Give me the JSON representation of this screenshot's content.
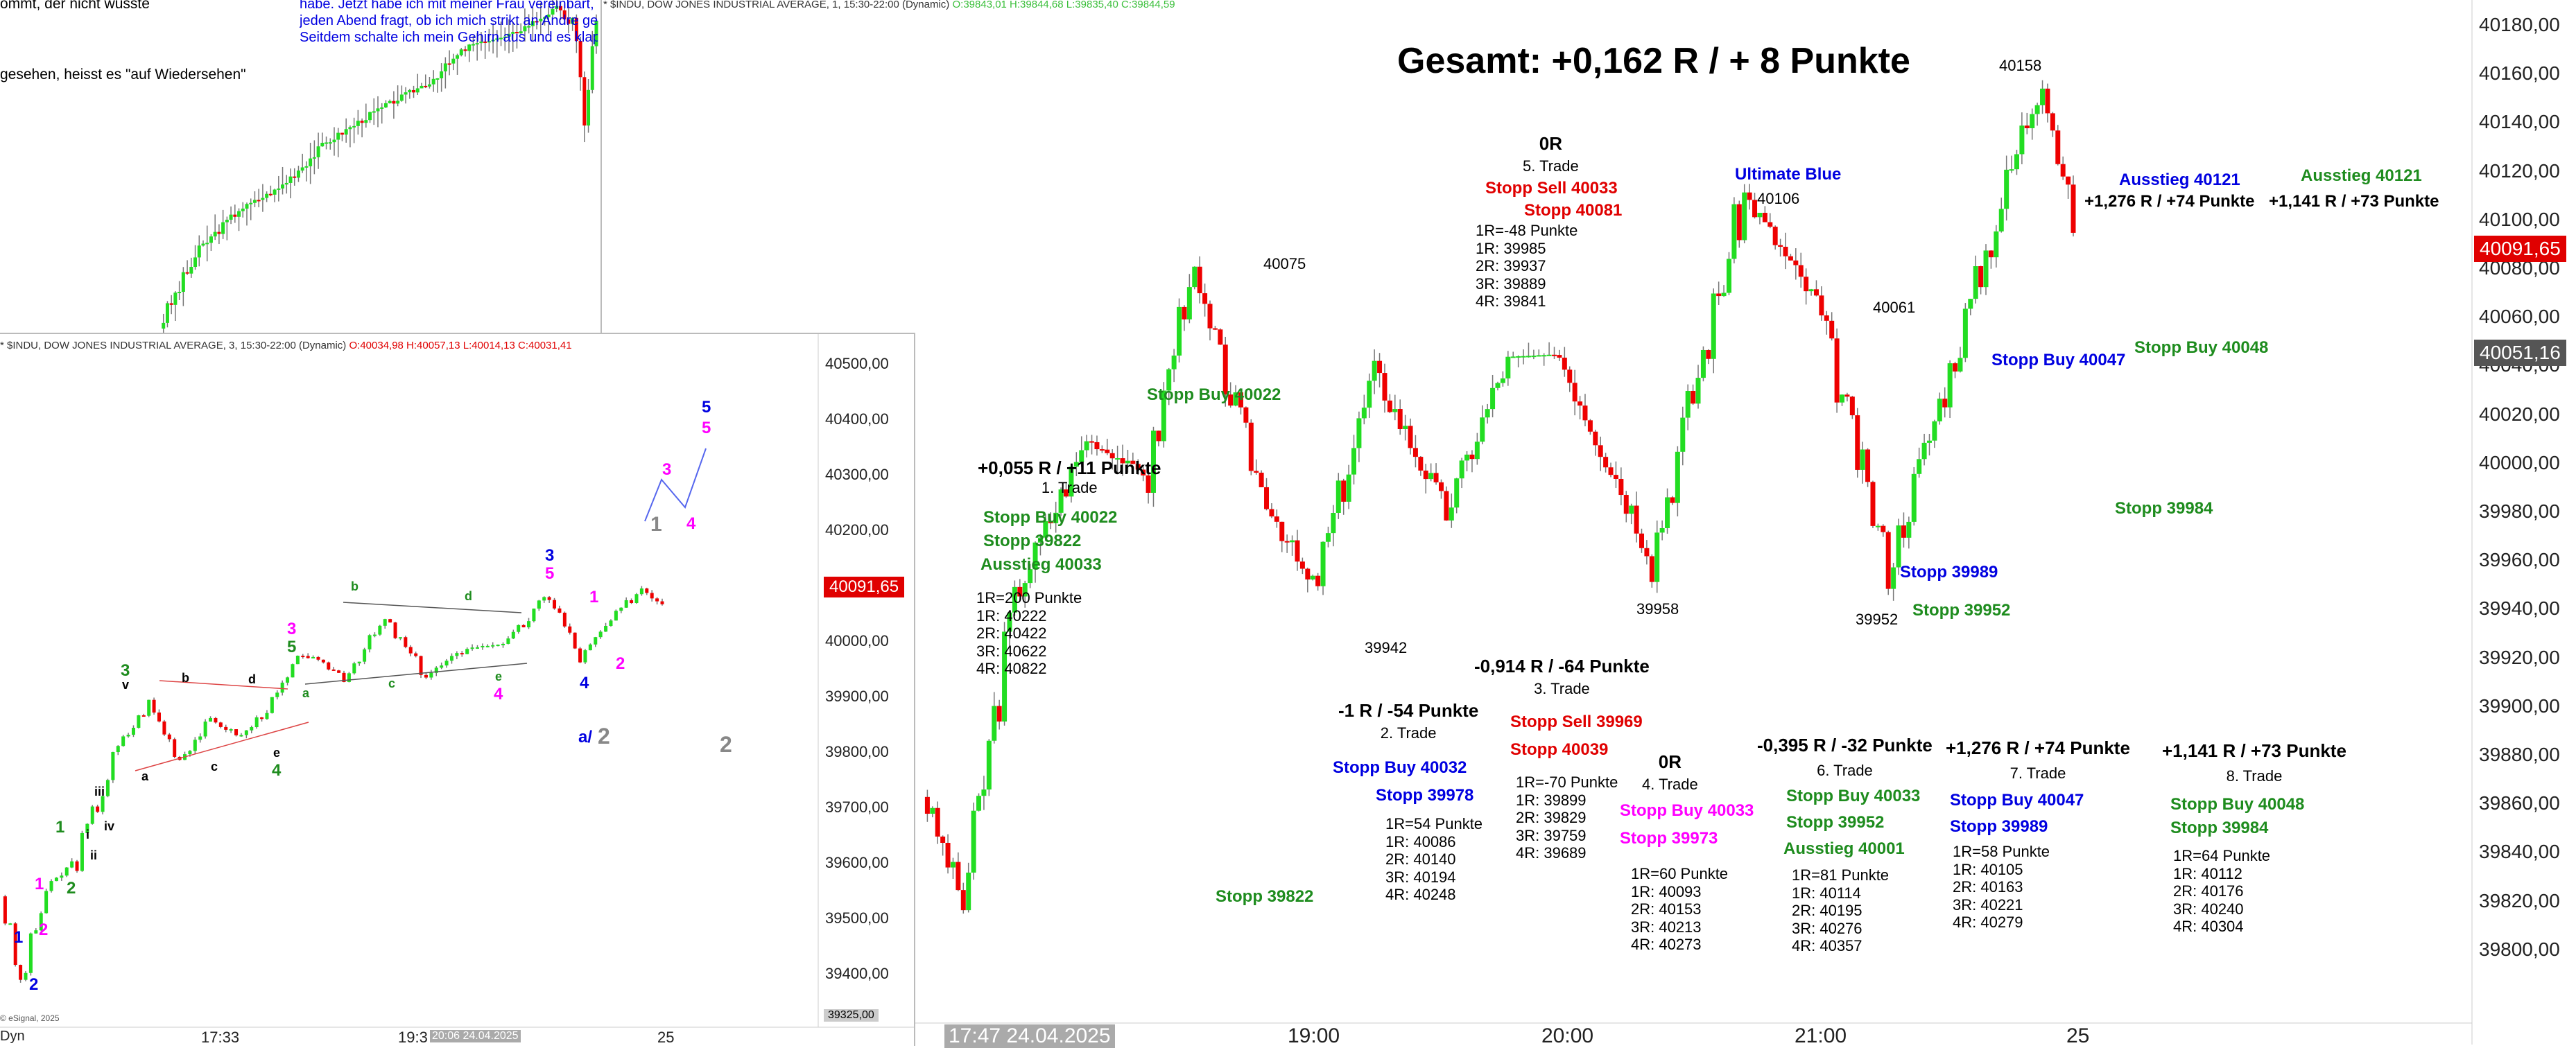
{
  "title": "Gesamt: +0,162 R / + 8 Punkte",
  "main_chart": {
    "header": "* $INDU, DOW JONES INDUSTRIAL AVERAGE, 1, 15:30-22:00 (Dynamic)",
    "header_ohlc": "O:39843,01 H:39844,68 L:39835,40 C:39844,59",
    "price_scale": [
      "40180,00",
      "40160,00",
      "40140,00",
      "40120,00",
      "40100,00",
      "40080,00",
      "40060,00",
      "40040,00",
      "40020,00",
      "40000,00",
      "39980,00",
      "39960,00",
      "39940,00",
      "39920,00",
      "39900,00",
      "39880,00",
      "39860,00",
      "39840,00",
      "39820,00",
      "39800,00"
    ],
    "last_price": "40091,65",
    "cursor_price": "40051,16",
    "time_labels": [
      "17:47 24.04.2025",
      "19:00",
      "20:00",
      "21:00",
      "25"
    ],
    "swing_labels": [
      "40075",
      "39942",
      "39958",
      "40106",
      "40061",
      "39952",
      "40158"
    ],
    "label_ultimate": "Ultimate Blue"
  },
  "chart_data": [
    {
      "type": "candlestick",
      "title": "* $INDU, DOW JONES INDUSTRIAL AVERAGE, 1, 15:30-22:00 (Dynamic)",
      "x": [
        "17:47 24.04.2025",
        "19:00",
        "20:00",
        "21:00",
        "25"
      ],
      "ylim": [
        39790,
        40190
      ],
      "swing_points": [
        {
          "label": "40075",
          "value": 40075
        },
        {
          "label": "39942",
          "value": 39942
        },
        {
          "label": "39958",
          "value": 39958
        },
        {
          "label": "40106",
          "value": 40106
        },
        {
          "label": "40061",
          "value": 40061
        },
        {
          "label": "39952",
          "value": 39952
        },
        {
          "label": "40158",
          "value": 40158
        }
      ],
      "last": 40091.65
    },
    {
      "type": "candlestick",
      "title": "* $INDU, DOW JONES INDUSTRIAL AVERAGE, 3, 15:30-22:00 (Dynamic)",
      "x": [
        "17:33",
        "19:3",
        "25"
      ],
      "ylim": [
        39325,
        40540
      ],
      "last": 40091.65
    }
  ],
  "trades": [
    {
      "no": "1. Trade",
      "result": "+0,055 R / +11 Punkte",
      "lines": [
        {
          "t": "Stopp Buy 40022",
          "c": "grn"
        },
        {
          "t": "Stopp 39822",
          "c": "grn"
        },
        {
          "t": "Ausstieg 40033",
          "c": "grn"
        }
      ],
      "plan": [
        "1R=200 Punkte",
        "1R: 40222",
        "2R: 40422",
        "3R: 40622",
        "4R: 40822"
      ]
    },
    {
      "no": "2. Trade",
      "result": "-1 R / -54 Punkte",
      "lines": [
        {
          "t": "Stopp Buy 40032",
          "c": "blu"
        },
        {
          "t": "Stopp 39978",
          "c": "blu"
        }
      ],
      "plan": [
        "1R=54 Punkte",
        "1R: 40086",
        "2R: 40140",
        "3R: 40194",
        "4R: 40248"
      ]
    },
    {
      "no": "3. Trade",
      "result": "-0,914 R / -64 Punkte",
      "lines": [
        {
          "t": "Stopp Sell 39969",
          "c": "red"
        },
        {
          "t": "Stopp 40039",
          "c": "red"
        }
      ],
      "plan": [
        "1R=-70 Punkte",
        "1R: 39899",
        "2R: 39829",
        "3R: 39759",
        "4R: 39689"
      ]
    },
    {
      "no": "4. Trade",
      "result": "0R",
      "lines": [
        {
          "t": "Stopp Buy 40033",
          "c": "mag"
        },
        {
          "t": "Stopp 39973",
          "c": "mag"
        }
      ],
      "plan": [
        "1R=60 Punkte",
        "1R: 40093",
        "2R: 40153",
        "3R: 40213",
        "4R: 40273"
      ]
    },
    {
      "no": "5. Trade",
      "result": "0R",
      "lines": [
        {
          "t": "Stopp Sell 40033",
          "c": "red"
        },
        {
          "t": "Stopp 40081",
          "c": "red"
        }
      ],
      "plan": [
        "1R=-48 Punkte",
        "1R: 39985",
        "2R: 39937",
        "3R: 39889",
        "4R: 39841"
      ]
    },
    {
      "no": "6. Trade",
      "result": "-0,395 R / -32 Punkte",
      "lines": [
        {
          "t": "Stopp Buy 40033",
          "c": "grn"
        },
        {
          "t": "Stopp 39952",
          "c": "grn"
        },
        {
          "t": "Ausstieg 40001",
          "c": "grn"
        }
      ],
      "plan": [
        "1R=81 Punkte",
        "1R: 40114",
        "2R: 40195",
        "3R: 40276",
        "4R: 40357"
      ]
    },
    {
      "no": "7. Trade",
      "result": "+1,276 R / +74 Punkte",
      "lines": [
        {
          "t": "Stopp Buy 40047",
          "c": "blu"
        },
        {
          "t": "Stopp 39989",
          "c": "blu"
        }
      ],
      "plan": [
        "1R=58 Punkte",
        "1R: 40105",
        "2R: 40163",
        "3R: 40221",
        "4R: 40279"
      ]
    },
    {
      "no": "8. Trade",
      "result": "+1,141 R / +73 Punkte",
      "lines": [
        {
          "t": "Stopp Buy 40048",
          "c": "grn"
        },
        {
          "t": "Stopp 39984",
          "c": "grn"
        }
      ],
      "plan": [
        "1R=64 Punkte",
        "1R: 40112",
        "2R: 40176",
        "3R: 40240",
        "4R: 40304"
      ]
    }
  ],
  "chart_labels": {
    "stopp_buy_40022": "Stopp Buy 40022",
    "stopp_39822": "Stopp 39822",
    "ausstieg_40121_blue": "Ausstieg 40121",
    "result_blue": "+1,276 R / +74 Punkte",
    "ausstieg_40121_green": "Ausstieg 40121",
    "result_green": "+1,141 R / +73 Punkte",
    "stopp_buy_40047": "Stopp Buy 40047",
    "stopp_buy_40048": "Stopp Buy 40048",
    "stopp_39984": "Stopp 39984",
    "stopp_39989": "Stopp 39989",
    "stopp_39952": "Stopp 39952"
  },
  "top_chart": {
    "lines": [
      {
        "t": "ommt, der nicht wüsste",
        "c": "black"
      },
      {
        "t": "gesehen, heisst es \"auf Wiedersehen\"",
        "c": "black"
      }
    ],
    "blue_text": [
      "habe. Jetzt habe ich mit meiner Frau vereinbart, d",
      "jeden Abend fragt, ob ich mich strikt an Andre ge",
      "Seitdem schalte ich mein Gehirn aus und es klapp"
    ]
  },
  "bottom_chart": {
    "header": "* $INDU, DOW JONES INDUSTRIAL AVERAGE, 3, 15:30-22:00 (Dynamic)",
    "header_ohlc": "O:40034,98 H:40057,13 L:40014,13 C:40031,41",
    "price_scale": [
      "40500,00",
      "40400,00",
      "40300,00",
      "40200,00",
      "40100,00",
      "40000,00",
      "39900,00",
      "39800,00",
      "39700,00",
      "39600,00",
      "39500,00",
      "39400,00"
    ],
    "last_price": "40091,65",
    "bottom_price": "39325,00",
    "time_labels": [
      "Dyn",
      "17:33",
      "19:3",
      "20:06 24.04.2025",
      "25"
    ],
    "copyright": "© eSignal, 2025"
  }
}
